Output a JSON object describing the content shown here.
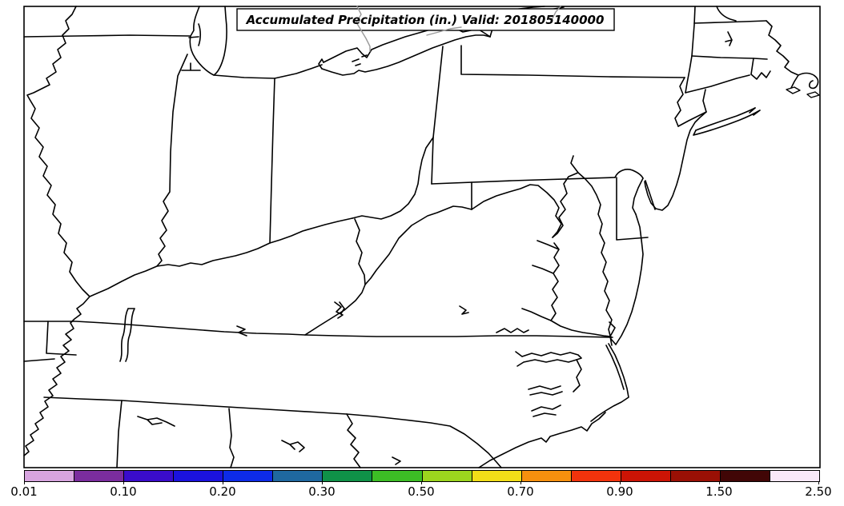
{
  "figure": {
    "title": "Accumulated Precipitation (in.) Valid: 201805140000"
  },
  "map": {
    "border_line_color": "#000000",
    "lake_detail_line_color": "#9a9a9a"
  },
  "colorbar": {
    "orientation": "horizontal",
    "tick_labels": [
      "0.01",
      "0.10",
      "0.20",
      "0.30",
      "0.50",
      "0.70",
      "0.90",
      "1.50",
      "2.50"
    ],
    "boundaries": [
      0.01,
      0.05,
      0.1,
      0.15,
      0.2,
      0.25,
      0.3,
      0.4,
      0.5,
      0.6,
      0.7,
      0.8,
      0.9,
      1.2,
      1.5,
      2.0,
      2.5
    ],
    "colors": [
      "#D7A4DF",
      "#7B2D9E",
      "#3A0CCC",
      "#1B12DE",
      "#0D2BE8",
      "#1F689F",
      "#0F9148",
      "#3CBD25",
      "#9CD51E",
      "#F2DE18",
      "#F6900E",
      "#F2330C",
      "#CC1405",
      "#9A1005",
      "#410606",
      "#F9E9F9"
    ]
  }
}
